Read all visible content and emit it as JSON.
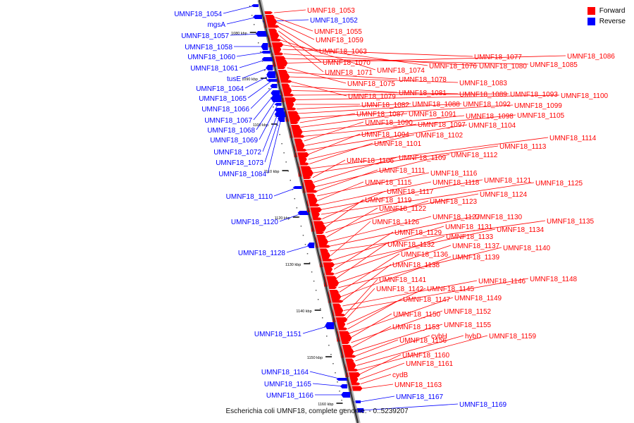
{
  "legend": {
    "forward_label": "Forward",
    "reverse_label": "Reverse",
    "forward_color": "#ff0000",
    "reverse_color": "#0000ff"
  },
  "caption": "Escherichia coli UMNF18, complete genome. - 0..5239207",
  "scale_ticks": [
    "1080 kbp",
    "1090 kbp",
    "1100 kbp",
    "1110 kbp",
    "1120 kbp",
    "1130 kbp",
    "1140 kbp",
    "1150 kbp",
    "1160 kbp"
  ],
  "reverse_labels": [
    "UMNF18_1054",
    "mgsA",
    "UMNF18_1057",
    "UMNF18_1058",
    "UMNF18_1060",
    "UMNF18_1061",
    "tusE",
    "UMNF18_1064",
    "UMNF18_1065",
    "UMNF18_1066",
    "UMNF18_1067",
    "UMNF18_1068",
    "UMNF18_1069",
    "UMNF18_1072",
    "UMNF18_1073",
    "UMNF18_1084",
    "UMNF18_1110",
    "UMNF18_1120",
    "UMNF18_1128",
    "UMNF18_1151",
    "UMNF18_1164",
    "UMNF18_1165",
    "UMNF18_1166",
    "UMNF18_1052",
    "UMNF18_1167",
    "UMNF18_1169"
  ],
  "forward_labels": [
    "UMNF18_1053",
    "UMNF18_1055",
    "UMNF18_1059",
    "UMNF18_1063",
    "UMNF18_1070",
    "UMNF18_1071",
    "UMNF18_1074",
    "UMNF18_1076",
    "UMNF18_1077",
    "UMNF18_1080",
    "UMNF18_1085",
    "UMNF18_1086",
    "UMNF18_1075",
    "UMNF18_1078",
    "UMNF18_1083",
    "UMNF18_1079",
    "UMNF18_1081",
    "UMNF18_1089",
    "UMNF18_1093",
    "UMNF18_1100",
    "UMNF18_1082",
    "UMNF18_1088",
    "UMNF18_1092",
    "UMNF18_1099",
    "UMNF18_1087",
    "UMNF18_1091",
    "UMNF18_1098",
    "UMNF18_1105",
    "UMNF18_1090",
    "UMNF18_1097",
    "UMNF18_1104",
    "UMNF18_1094",
    "UMNF18_1102",
    "UMNF18_1101",
    "UMNF18_1114",
    "UMNF18_1113",
    "UMNF18_1106",
    "UMNF18_1109",
    "UMNF18_1112",
    "UMNF18_1111",
    "UMNF18_1116",
    "UMNF18_1115",
    "UMNF18_1118",
    "UMNF18_1121",
    "UMNF18_1125",
    "UMNF18_1117",
    "UMNF18_1124",
    "UMNF18_1119",
    "UMNF18_1123",
    "UMNF18_1122",
    "UMNF18_1127",
    "UMNF18_1130",
    "UMNF18_1135",
    "UMNF18_1126",
    "UMNF18_1131",
    "UMNF18_1134",
    "UMNF18_1129",
    "UMNF18_1133",
    "UMNF18_1132",
    "UMNF18_1137",
    "UMNF18_1140",
    "UMNF18_1136",
    "UMNF18_1139",
    "UMNF18_1138",
    "UMNF18_1146",
    "UMNF18_1148",
    "UMNF18_1141",
    "UMNF18_1142",
    "UMNF18_1145",
    "UMNF18_1147",
    "UMNF18_1149",
    "UMNF18_1150",
    "UMNF18_1152",
    "UMNF18_1153",
    "UMNF18_1155",
    "UMNF18_1156",
    "cybH",
    "hybD",
    "UMNF18_1159",
    "UMNF18_1160",
    "UMNF18_1161",
    "cydB",
    "UMNF18_1163"
  ]
}
